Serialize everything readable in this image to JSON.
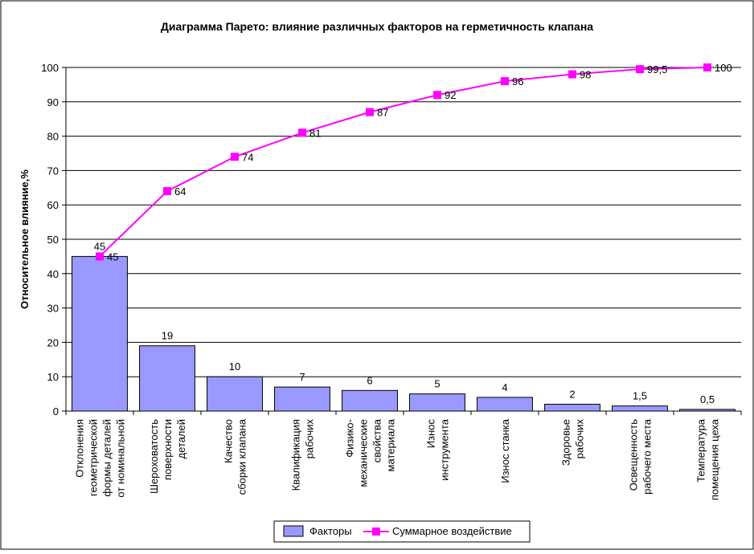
{
  "chart_data": {
    "type": "bar",
    "title": "Диаграмма Парето: влияние различных факторов на герметичность клапана",
    "ylabel": "Относительное влияние,%",
    "xlabel": "",
    "ylim": [
      0,
      100
    ],
    "yticks": [
      0,
      10,
      20,
      30,
      40,
      50,
      60,
      70,
      80,
      90,
      100
    ],
    "grid": true,
    "legend_position": "bottom",
    "categories": [
      [
        "Отклонения",
        "геометрической",
        "формы деталей",
        "от номинальной"
      ],
      [
        "Шероховатость",
        "поверхности",
        "деталей"
      ],
      [
        "Качество",
        "сборки клапана"
      ],
      [
        "Квалификация",
        "рабочих"
      ],
      [
        "Физико-",
        "механические",
        "свойства",
        "материала"
      ],
      [
        "Износ",
        "инструмента"
      ],
      [
        "Износ станка"
      ],
      [
        "Здоровье",
        "рабочих"
      ],
      [
        "Освещенность",
        "рабочего места"
      ],
      [
        "Температура",
        "помещения цеха"
      ]
    ],
    "series": [
      {
        "name": "Факторы",
        "type": "bar",
        "color": "#9999ff",
        "values": [
          45,
          19,
          10,
          7,
          6,
          5,
          4,
          2,
          1.5,
          0.5
        ],
        "labels": [
          "45",
          "19",
          "10",
          "7",
          "6",
          "5",
          "4",
          "2",
          "1,5",
          "0,5"
        ]
      },
      {
        "name": "Суммарное воздействие",
        "type": "line",
        "color": "#ff00ff",
        "values": [
          45,
          64,
          74,
          81,
          87,
          92,
          96,
          98,
          99.5,
          100
        ],
        "labels": [
          "45",
          "64",
          "74",
          "81",
          "87",
          "92",
          "96",
          "98",
          "99,5",
          "100"
        ]
      }
    ]
  }
}
